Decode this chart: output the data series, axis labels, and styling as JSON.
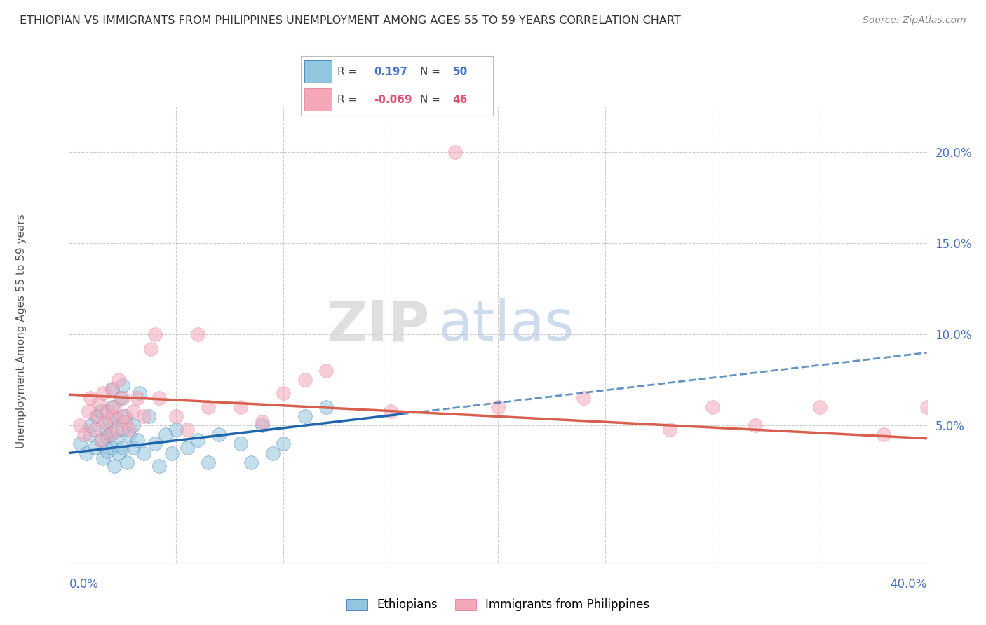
{
  "title": "ETHIOPIAN VS IMMIGRANTS FROM PHILIPPINES UNEMPLOYMENT AMONG AGES 55 TO 59 YEARS CORRELATION CHART",
  "source": "Source: ZipAtlas.com",
  "ylabel": "Unemployment Among Ages 55 to 59 years",
  "xmin": 0.0,
  "xmax": 0.4,
  "ymin": -0.025,
  "ymax": 0.225,
  "yticks": [
    0.0,
    0.05,
    0.1,
    0.15,
    0.2
  ],
  "ytick_labels": [
    "",
    "5.0%",
    "10.0%",
    "15.0%",
    "20.0%"
  ],
  "legend1_r": "0.197",
  "legend1_n": "50",
  "legend2_r": "-0.069",
  "legend2_n": "46",
  "color_blue": "#92c5de",
  "color_pink": "#f4a7b9",
  "trendline_blue": "#2166ac",
  "trendline_pink": "#d6604d",
  "watermark_zip": "ZIP",
  "watermark_atlas": "atlas",
  "ethiopians_x": [
    0.005,
    0.008,
    0.01,
    0.01,
    0.012,
    0.013,
    0.015,
    0.015,
    0.016,
    0.017,
    0.018,
    0.018,
    0.019,
    0.02,
    0.02,
    0.02,
    0.02,
    0.021,
    0.022,
    0.022,
    0.023,
    0.024,
    0.025,
    0.025,
    0.025,
    0.026,
    0.027,
    0.028,
    0.03,
    0.03,
    0.032,
    0.033,
    0.035,
    0.037,
    0.04,
    0.042,
    0.045,
    0.048,
    0.05,
    0.055,
    0.06,
    0.065,
    0.07,
    0.08,
    0.085,
    0.09,
    0.095,
    0.1,
    0.11,
    0.12
  ],
  "ethiopians_y": [
    0.04,
    0.035,
    0.045,
    0.05,
    0.038,
    0.055,
    0.042,
    0.058,
    0.032,
    0.048,
    0.036,
    0.044,
    0.052,
    0.038,
    0.046,
    0.06,
    0.07,
    0.028,
    0.042,
    0.054,
    0.035,
    0.065,
    0.048,
    0.038,
    0.072,
    0.055,
    0.03,
    0.045,
    0.038,
    0.05,
    0.042,
    0.068,
    0.035,
    0.055,
    0.04,
    0.028,
    0.045,
    0.035,
    0.048,
    0.038,
    0.042,
    0.03,
    0.045,
    0.04,
    0.03,
    0.05,
    0.035,
    0.04,
    0.055,
    0.06
  ],
  "philippines_x": [
    0.005,
    0.007,
    0.009,
    0.01,
    0.012,
    0.013,
    0.014,
    0.015,
    0.016,
    0.017,
    0.018,
    0.019,
    0.02,
    0.02,
    0.021,
    0.022,
    0.023,
    0.025,
    0.025,
    0.026,
    0.028,
    0.03,
    0.032,
    0.035,
    0.038,
    0.04,
    0.042,
    0.05,
    0.055,
    0.06,
    0.065,
    0.08,
    0.09,
    0.1,
    0.11,
    0.12,
    0.15,
    0.18,
    0.2,
    0.24,
    0.28,
    0.3,
    0.32,
    0.35,
    0.38,
    0.4
  ],
  "philippines_y": [
    0.05,
    0.045,
    0.058,
    0.065,
    0.048,
    0.055,
    0.062,
    0.042,
    0.068,
    0.052,
    0.058,
    0.045,
    0.055,
    0.07,
    0.06,
    0.048,
    0.075,
    0.055,
    0.065,
    0.052,
    0.048,
    0.058,
    0.065,
    0.055,
    0.092,
    0.1,
    0.065,
    0.055,
    0.048,
    0.1,
    0.06,
    0.06,
    0.052,
    0.068,
    0.075,
    0.08,
    0.058,
    0.2,
    0.06,
    0.065,
    0.048,
    0.06,
    0.05,
    0.06,
    0.045,
    0.06
  ]
}
